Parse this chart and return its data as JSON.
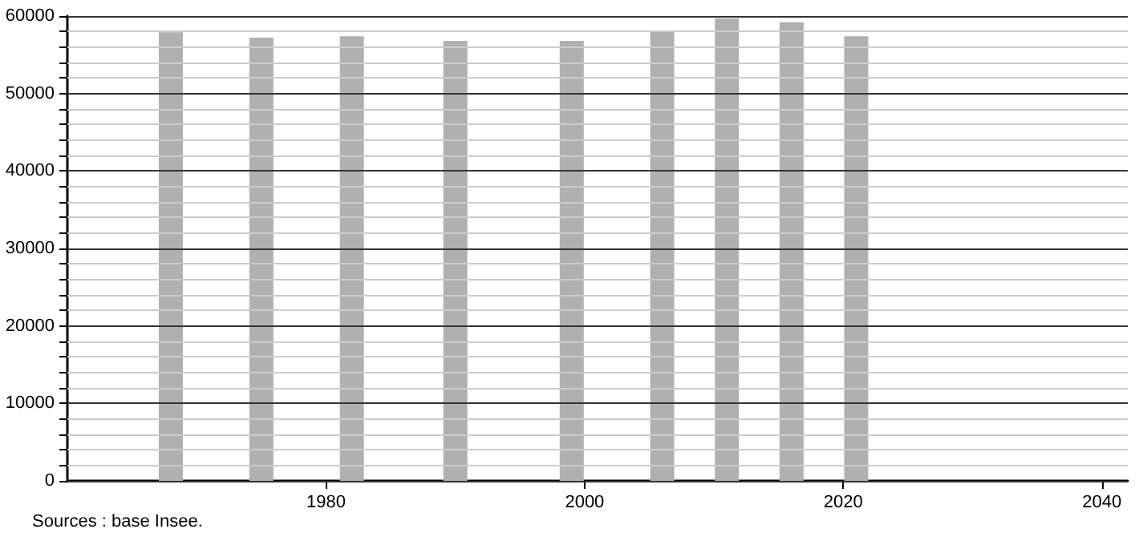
{
  "chart_data": {
    "type": "bar",
    "x": [
      1968,
      1975,
      1982,
      1990,
      1999,
      2006,
      2011,
      2016,
      2021
    ],
    "values": [
      57900,
      57200,
      57400,
      56800,
      56800,
      58000,
      59700,
      59200,
      57400
    ],
    "color": "#b0b0b0",
    "xlim": [
      1960,
      2042
    ],
    "xticks": [
      1980,
      2000,
      2020,
      2040
    ],
    "ylim": [
      0,
      60000
    ],
    "yticks": [
      0,
      {
        "value": 2000,
        "label": null
      },
      {
        "value": 4000,
        "label": null
      },
      {
        "value": 6000,
        "label": null
      },
      {
        "value": 8000,
        "label": null
      },
      10000,
      {
        "value": 12000,
        "label": null
      },
      {
        "value": 14000,
        "label": null
      },
      {
        "value": 16000,
        "label": null
      },
      {
        "value": 18000,
        "label": null
      },
      20000,
      {
        "value": 22000,
        "label": null
      },
      {
        "value": 24000,
        "label": null
      },
      {
        "value": 26000,
        "label": null
      },
      {
        "value": 28000,
        "label": null
      },
      30000,
      {
        "value": 32000,
        "label": null
      },
      {
        "value": 34000,
        "label": null
      },
      {
        "value": 36000,
        "label": null
      },
      {
        "value": 38000,
        "label": null
      },
      40000,
      {
        "value": 42000,
        "label": null
      },
      {
        "value": 44000,
        "label": null
      },
      {
        "value": 46000,
        "label": null
      },
      {
        "value": 48000,
        "label": null
      },
      50000,
      {
        "value": 52000,
        "label": null
      },
      {
        "value": 54000,
        "label": null
      },
      {
        "value": 56000,
        "label": null
      },
      {
        "value": 58000,
        "label": null
      },
      60000
    ],
    "grid": "y",
    "annotations": [
      "Sources : base Insee."
    ]
  }
}
